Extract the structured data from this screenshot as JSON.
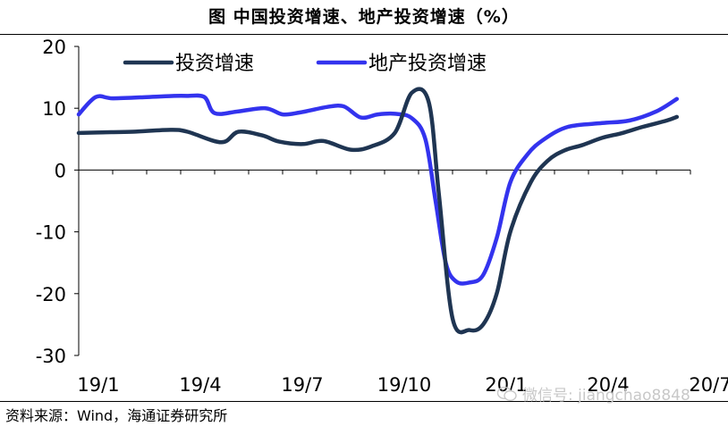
{
  "chart_data": {
    "type": "line",
    "title": "图   中国投资增速、地产投资增速（%）",
    "xlabel": "",
    "ylabel": "",
    "ylim": [
      -30,
      20
    ],
    "yticks": [
      20,
      10,
      0,
      -10,
      -20,
      -30
    ],
    "x_tick_labels": [
      "19/1",
      "19/4",
      "19/7",
      "19/10",
      "20/1",
      "20/4",
      "20/7"
    ],
    "legend_position": "top",
    "series": [
      {
        "name": "投资增速",
        "color": "#1f3552",
        "x": [
          0,
          0.7,
          1.6,
          2.7,
          3.2,
          4.2,
          4.7,
          5.4,
          5.9,
          6.6,
          7.2,
          8.0,
          8.6,
          9.3,
          9.8,
          10.3,
          10.6,
          11.0,
          11.5,
          11.9,
          12.3,
          12.7,
          13.3,
          13.8,
          14.3,
          14.8,
          15.4,
          16.0,
          16.6,
          17.3,
          17.6
        ],
        "values": [
          6,
          6.1,
          6.2,
          6.5,
          6.2,
          4.5,
          6.2,
          5.6,
          4.6,
          4.2,
          4.7,
          3.3,
          3.8,
          6.0,
          12.5,
          11.0,
          -4.0,
          -24.0,
          -25.9,
          -25.0,
          -20.0,
          -10.0,
          -2.0,
          1.5,
          3.2,
          4.0,
          5.2,
          6.0,
          7.0,
          8.0,
          8.6
        ]
      },
      {
        "name": "地产投资增速",
        "color": "#3333ee",
        "x": [
          0,
          0.5,
          1.0,
          2.0,
          2.8,
          3.2,
          3.7,
          4.0,
          4.7,
          5.5,
          6.0,
          6.5,
          7.3,
          7.8,
          8.3,
          8.8,
          9.3,
          9.8,
          10.2,
          10.5,
          10.8,
          11.1,
          11.5,
          11.9,
          12.3,
          12.7,
          13.2,
          13.7,
          14.4,
          15.4,
          16.2,
          17.0,
          17.6
        ],
        "values": [
          9.0,
          11.8,
          11.6,
          11.8,
          12.0,
          12.0,
          11.8,
          9.2,
          9.5,
          10.0,
          9.0,
          9.3,
          10.2,
          10.3,
          8.5,
          9.0,
          9.1,
          8.4,
          5.0,
          -5.0,
          -15.0,
          -18.0,
          -18.2,
          -17.0,
          -11.0,
          -2.0,
          2.5,
          5.0,
          7.0,
          7.6,
          8.0,
          9.5,
          11.5
        ]
      }
    ]
  },
  "source_text": "资料来源：Wind，海通证券研究所",
  "watermark_text": "微信号: jiangchao8848"
}
